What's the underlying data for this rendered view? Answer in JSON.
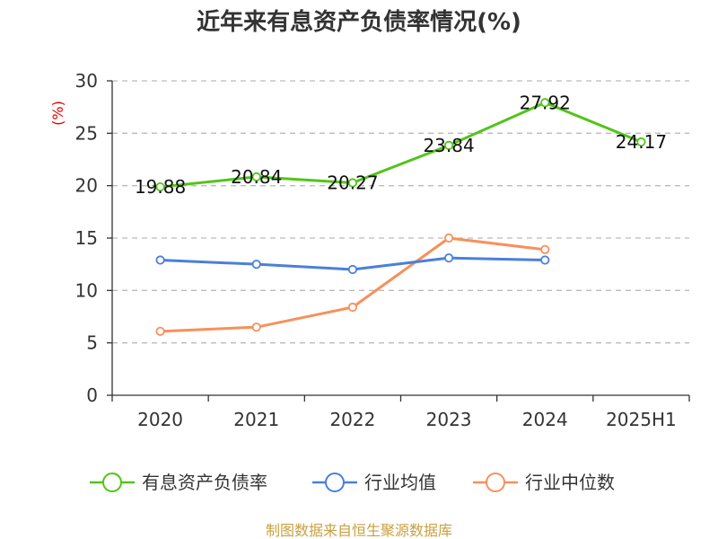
{
  "chart_data": {
    "type": "line",
    "title": "近年来有息资产负债率情况(%)",
    "ylabel": "(%)",
    "xlabel": "",
    "categories": [
      "2020",
      "2021",
      "2022",
      "2023",
      "2024",
      "2025H1"
    ],
    "ylim": [
      0,
      30
    ],
    "yticks": [
      "0",
      "5",
      "10",
      "15",
      "20",
      "25",
      "30"
    ],
    "grid": true,
    "legend_position": "bottom",
    "series": [
      {
        "name": "有息资产负债率",
        "color": "#52c41a",
        "values": [
          19.88,
          20.84,
          20.27,
          23.84,
          27.92,
          24.17
        ],
        "labels": [
          "19.88",
          "20.84",
          "20.27",
          "23.84",
          "27.92",
          "24.17"
        ]
      },
      {
        "name": "行业均值",
        "color": "#4a7fdc",
        "values": [
          12.9,
          12.5,
          12.0,
          13.1,
          12.9,
          null
        ]
      },
      {
        "name": "行业中位数",
        "color": "#f7905c",
        "values": [
          6.1,
          6.5,
          8.4,
          15.0,
          13.9,
          null
        ]
      }
    ],
    "source": "制图数据来自恒生聚源数据库"
  }
}
